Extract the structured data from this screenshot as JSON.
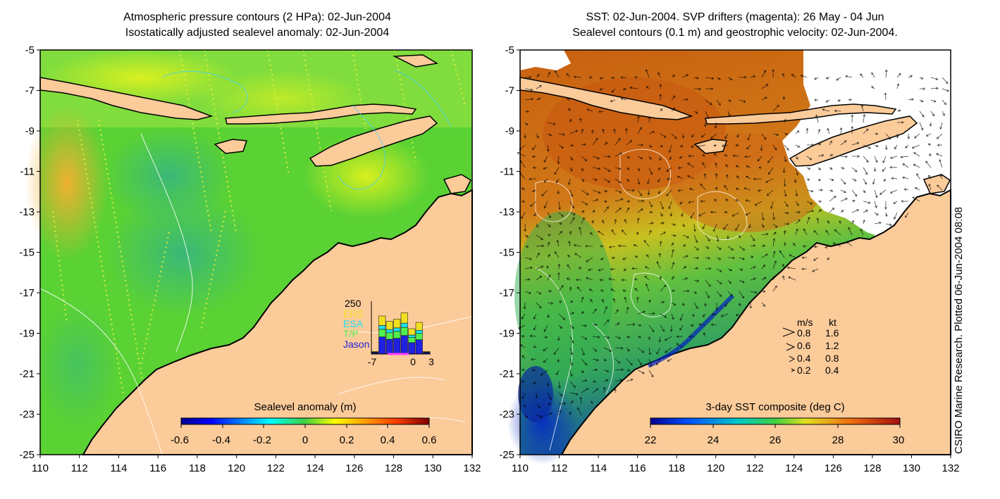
{
  "left_panel": {
    "title_line1": "Atmospheric pressure contours (2 HPa): 02-Jun-2004",
    "title_line2": "Isostatically adjusted sealevel anomaly: 02-Jun-2004",
    "colorbar": {
      "title": "Sealevel anomaly (m)",
      "tick_labels": [
        "-0.6",
        "-0.4",
        "-0.2",
        "0",
        "0.2",
        "0.4",
        "0.6"
      ]
    },
    "inset": {
      "max_label": "250",
      "legend": [
        "ERS",
        "ESA",
        "T/P",
        "Jason"
      ],
      "legend_colors": [
        "#f0e020",
        "#20e0f0",
        "#50f050",
        "#2020e0"
      ],
      "x_labels": [
        "-7",
        "0",
        "3"
      ],
      "bar_totals": [
        0.05,
        0.72,
        0.62,
        0.66,
        0.78,
        0.48,
        0.6,
        0.05
      ]
    }
  },
  "right_panel": {
    "title_line1": "SST: 02-Jun-2004. SVP drifters (magenta): 26 May - 04 Jun",
    "title_line2": "Sealevel contours (0.1 m) and geostrophic velocity: 02-Jun-2004.",
    "colorbar": {
      "title": "3-day SST composite (deg C)",
      "tick_labels": [
        "22",
        "24",
        "26",
        "28",
        "30"
      ]
    },
    "velocity_legend": {
      "header_ms": "m/s",
      "header_kt": "kt",
      "rows": [
        {
          "ms": "0.8",
          "kt": "1.6"
        },
        {
          "ms": "0.6",
          "kt": "1.2"
        },
        {
          "ms": "0.4",
          "kt": "0.8"
        },
        {
          "ms": "0.2",
          "kt": "0.4"
        }
      ]
    }
  },
  "axes": {
    "y_labels": [
      "-5",
      "-7",
      "-9",
      "-11",
      "-13",
      "-15",
      "-17",
      "-19",
      "-21",
      "-23",
      "-25"
    ],
    "x_labels": [
      "110",
      "112",
      "114",
      "116",
      "118",
      "120",
      "122",
      "124",
      "126",
      "128",
      "130",
      "132"
    ]
  },
  "credit": "CSIRO Marine Research. Plotted 06-Jun-2004 08:08",
  "colors": {
    "land": "#fbcb9a",
    "sea_anomaly": "#5ad234",
    "sst_warm": "#c85a14",
    "sst_cool": "#32a050"
  }
}
